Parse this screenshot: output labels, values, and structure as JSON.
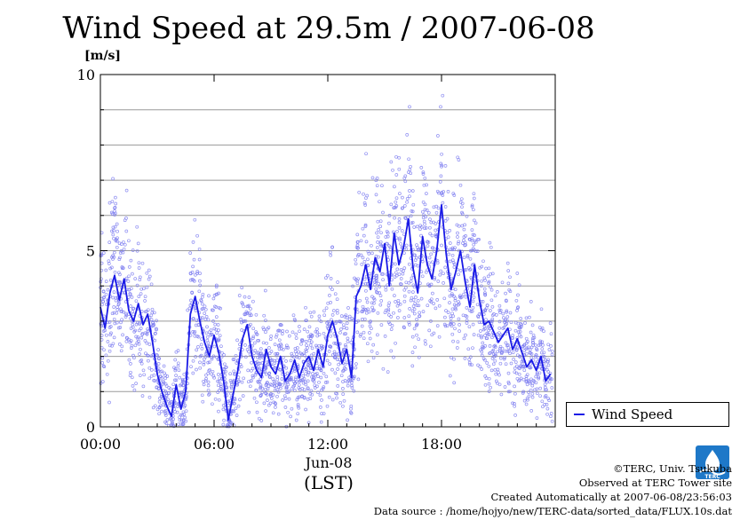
{
  "title": "Wind Speed at 29.5m / 2007-06-08",
  "unit": "[m/s]",
  "legend": {
    "label": "Wind Speed"
  },
  "x_axis": {
    "ticks": [
      "00:00",
      "06:00",
      "12:00",
      "18:00"
    ],
    "date_label": "Jun-08",
    "tz_label": "(LST)"
  },
  "y_axis": {
    "ticks": [
      "0",
      "5",
      "10"
    ]
  },
  "colors": {
    "line": "#1a1ae6",
    "scatter": "#7b7bf0",
    "grid": "#9a9a9a"
  },
  "credits": {
    "copyright": "©TERC, Univ. Tsukuba",
    "observed": "Observed at TERC Tower site",
    "created": "Created Automatically at 2007-06-08/23:56:03",
    "source": "Data source : /home/hojyo/new/TERC-data/sorted_data/FLUX.10s.dat"
  },
  "logo": {
    "icon": "terc-logo-icon",
    "text": "TERC"
  },
  "chart_data": {
    "type": "line",
    "title": "Wind Speed at 29.5m / 2007-06-08",
    "ylabel": "[m/s]",
    "xlabel": "(LST)",
    "xlim": [
      0,
      24
    ],
    "ylim": [
      0,
      10
    ],
    "x_ticks": [
      "00:00",
      "06:00",
      "12:00",
      "18:00"
    ],
    "y_ticks": [
      0,
      5,
      10
    ],
    "grid": true,
    "legend_position": "right",
    "series": [
      {
        "name": "Wind Speed",
        "style": "line",
        "x": [
          0.0,
          0.25,
          0.5,
          0.75,
          1.0,
          1.25,
          1.5,
          1.75,
          2.0,
          2.25,
          2.5,
          2.75,
          3.0,
          3.25,
          3.5,
          3.75,
          4.0,
          4.25,
          4.5,
          4.75,
          5.0,
          5.25,
          5.5,
          5.75,
          6.0,
          6.25,
          6.5,
          6.75,
          7.0,
          7.25,
          7.5,
          7.75,
          8.0,
          8.25,
          8.5,
          8.75,
          9.0,
          9.25,
          9.5,
          9.75,
          10.0,
          10.25,
          10.5,
          10.75,
          11.0,
          11.25,
          11.5,
          11.75,
          12.0,
          12.25,
          12.5,
          12.75,
          13.0,
          13.25,
          13.5,
          13.75,
          14.0,
          14.25,
          14.5,
          14.75,
          15.0,
          15.25,
          15.5,
          15.75,
          16.0,
          16.25,
          16.5,
          16.75,
          17.0,
          17.25,
          17.5,
          17.75,
          18.0,
          18.25,
          18.5,
          18.75,
          19.0,
          19.25,
          19.5,
          19.75,
          20.0,
          20.25,
          20.5,
          20.75,
          21.0,
          21.25,
          21.5,
          21.75,
          22.0,
          22.25,
          22.5,
          22.75,
          23.0,
          23.25,
          23.5,
          23.75
        ],
        "y": [
          3.4,
          2.8,
          3.8,
          4.3,
          3.6,
          4.2,
          3.3,
          3.0,
          3.5,
          2.9,
          3.2,
          2.4,
          1.5,
          1.0,
          0.6,
          0.3,
          1.2,
          0.5,
          1.0,
          3.2,
          3.7,
          3.0,
          2.4,
          2.0,
          2.6,
          2.1,
          1.3,
          0.2,
          0.9,
          1.6,
          2.5,
          2.9,
          2.0,
          1.6,
          1.4,
          2.2,
          1.7,
          1.5,
          2.0,
          1.3,
          1.5,
          1.9,
          1.4,
          1.8,
          2.0,
          1.6,
          2.2,
          1.7,
          2.6,
          3.0,
          2.5,
          1.8,
          2.2,
          1.4,
          3.7,
          4.0,
          4.6,
          3.9,
          4.8,
          4.4,
          5.2,
          4.0,
          5.5,
          4.6,
          5.1,
          5.9,
          4.5,
          3.8,
          5.4,
          4.6,
          4.2,
          5.0,
          6.3,
          4.9,
          3.9,
          4.4,
          5.0,
          4.1,
          3.4,
          4.6,
          3.6,
          2.9,
          3.0,
          2.7,
          2.4,
          2.6,
          2.8,
          2.2,
          2.5,
          2.1,
          1.7,
          1.9,
          1.6,
          2.0,
          1.3,
          1.5
        ]
      }
    ]
  }
}
